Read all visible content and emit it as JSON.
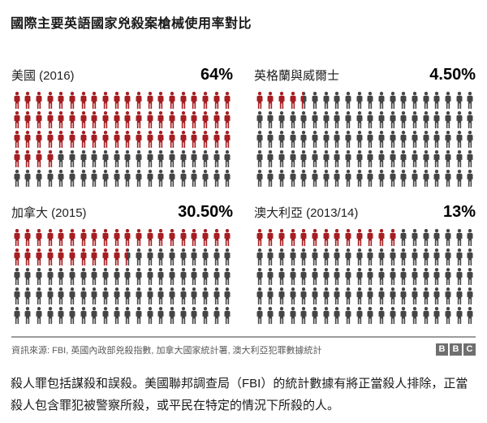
{
  "title": "國際主要英語國家兇殺案槍械使用率對比",
  "chart_data": {
    "type": "pictogram",
    "unit": "percent of homicides involving a firearm",
    "icons_per_panel": 100,
    "columns": 20,
    "rows": 5,
    "colors": {
      "filled": "#a51e22",
      "empty": "#454545"
    },
    "panels": [
      {
        "label": "美國 (2016)",
        "value": 64,
        "value_label": "64%"
      },
      {
        "label": "英格蘭與威爾士",
        "value": 4.5,
        "value_label": "4.50%"
      },
      {
        "label": "加拿大 (2015)",
        "value": 30.5,
        "value_label": "30.50%"
      },
      {
        "label": "澳大利亞 (2013/14)",
        "value": 13,
        "value_label": "13%"
      }
    ]
  },
  "footer": {
    "source": "資訊來源: FBI, 英國內政部兇殺指數, 加拿大國家統計署, 澳大利亞犯罪數據統計",
    "logo_letters": [
      "B",
      "B",
      "C"
    ]
  },
  "caption": "殺人罪包括謀殺和誤殺。美國聯邦調查局（FBI）的統計數據有將正當殺人排除，正當殺人包含罪犯被警察所殺，或平民在特定的情況下所殺的人。"
}
